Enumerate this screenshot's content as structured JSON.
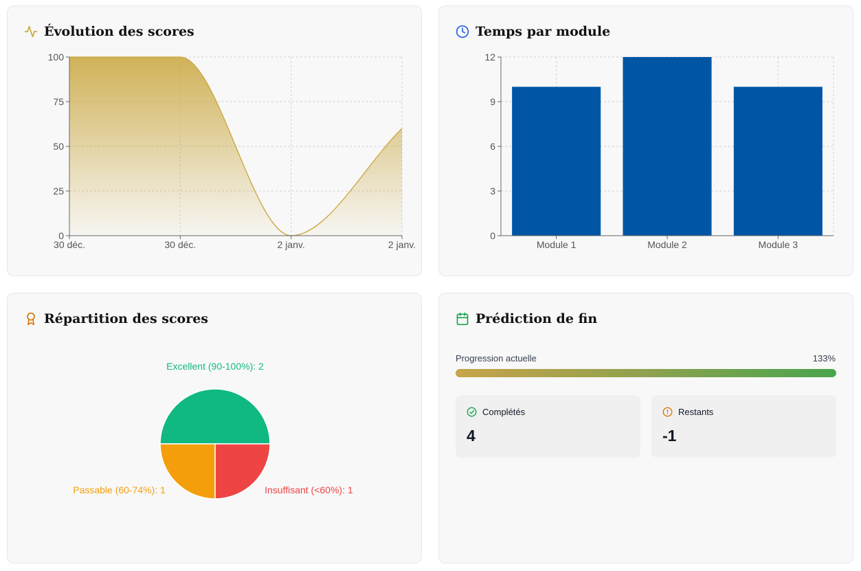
{
  "cards": {
    "score_evolution": {
      "title": "Évolution des scores",
      "icon": "activity-icon",
      "accent": "#c9a63c",
      "chart_data": {
        "type": "area",
        "x_labels": [
          "30 déc.",
          "30 déc.",
          "2 janv.",
          "2 janv."
        ],
        "values": [
          100,
          100,
          0,
          60
        ],
        "ylim": [
          0,
          100
        ],
        "yticks": [
          0,
          25,
          50,
          75,
          100
        ],
        "grid": true,
        "title": "",
        "xlabel": "",
        "ylabel": ""
      }
    },
    "time_per_module": {
      "title": "Temps par module",
      "icon": "clock-icon",
      "accent": "#0055a5",
      "chart_data": {
        "type": "bar",
        "categories": [
          "Module 1",
          "Module 2",
          "Module 3"
        ],
        "values": [
          10,
          12,
          10
        ],
        "ylim": [
          0,
          12
        ],
        "yticks": [
          0,
          3,
          6,
          9,
          12
        ],
        "grid": true,
        "title": "",
        "xlabel": "",
        "ylabel": ""
      }
    },
    "score_distribution": {
      "title": "Répartition des scores",
      "icon": "award-icon",
      "chart_data": {
        "type": "pie",
        "slices": [
          {
            "label": "Excellent (90-100%): 2",
            "value": 2,
            "color": "#10b981"
          },
          {
            "label": "Insuffisant (<60%): 1",
            "value": 1,
            "color": "#ef4444"
          },
          {
            "label": "Passable (60-74%): 1",
            "value": 1,
            "color": "#f59e0b"
          }
        ]
      }
    },
    "completion_prediction": {
      "title": "Prédiction de fin",
      "icon": "calendar-icon",
      "progress_label": "Progression actuelle",
      "progress_value": "133%",
      "progress_fraction": 1.0,
      "completed": {
        "label": "Complétés",
        "value": "4",
        "icon": "check-circle-icon"
      },
      "remaining": {
        "label": "Restants",
        "value": "-1",
        "icon": "alert-circle-icon"
      }
    }
  }
}
